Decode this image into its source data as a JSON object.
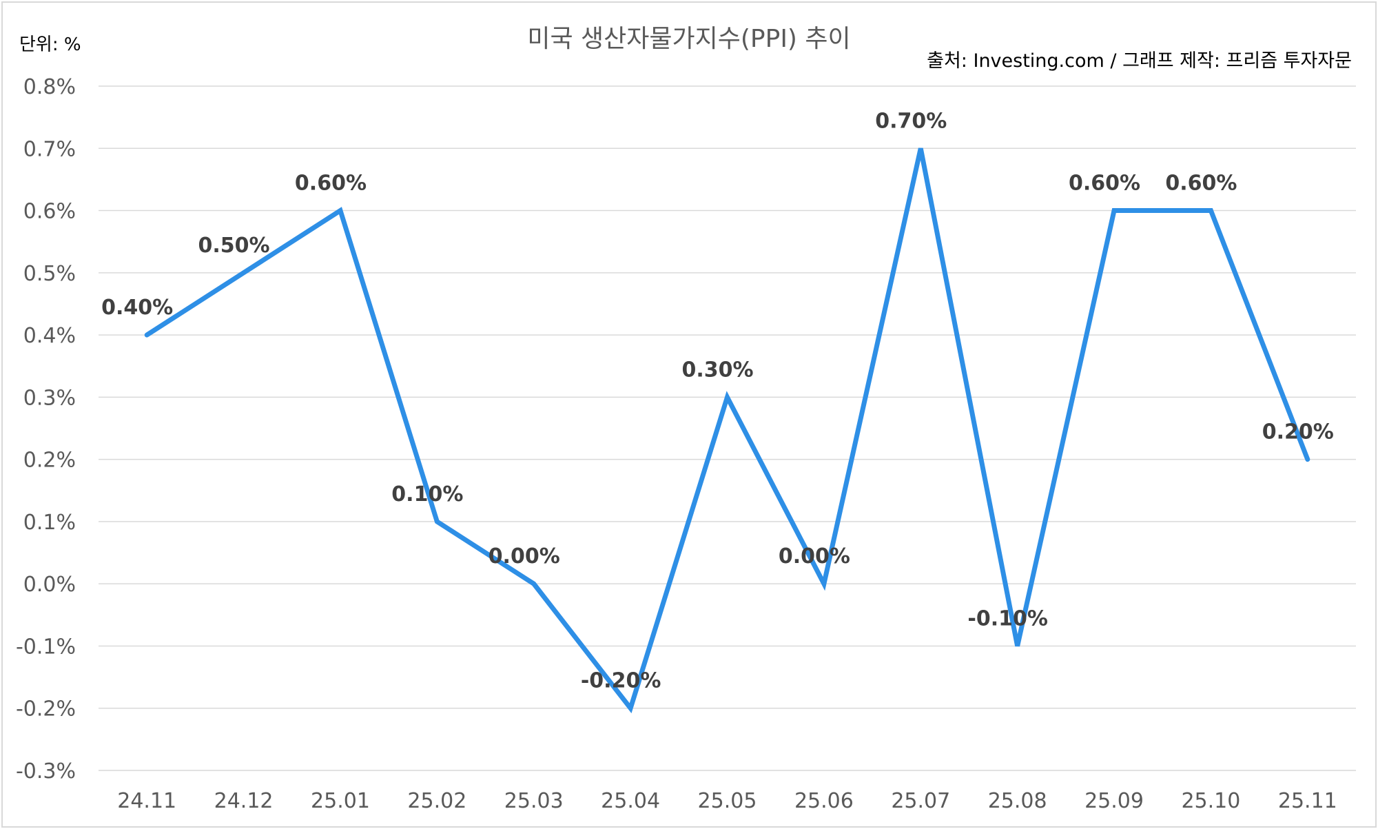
{
  "chart_data": {
    "type": "line",
    "title": "미국 생산자물가지수(PPI) 추이",
    "unit_label": "단위: %",
    "source": "출처: Investing.com / 그래프 제작: 프리즘 투자자문",
    "categories": [
      "24.11",
      "24.12",
      "25.01",
      "25.02",
      "25.03",
      "25.04",
      "25.05",
      "25.06",
      "25.07",
      "25.08",
      "25.09",
      "25.10",
      "25.11"
    ],
    "series": [
      {
        "values": [
          0.4,
          0.5,
          0.6,
          0.1,
          0.0,
          -0.2,
          0.3,
          0.0,
          0.7,
          -0.1,
          0.6,
          0.6,
          0.2
        ],
        "color": "#2E8FE6"
      }
    ],
    "data_labels": [
      "0.40%",
      "0.50%",
      "0.60%",
      "0.10%",
      "0.00%",
      "-0.20%",
      "0.30%",
      "0.00%",
      "0.70%",
      "-0.10%",
      "0.60%",
      "0.60%",
      "0.20%"
    ],
    "y_ticks": [
      {
        "value": 0.8,
        "label": "0.8%"
      },
      {
        "value": 0.7,
        "label": "0.7%"
      },
      {
        "value": 0.6,
        "label": "0.6%"
      },
      {
        "value": 0.5,
        "label": "0.5%"
      },
      {
        "value": 0.4,
        "label": "0.4%"
      },
      {
        "value": 0.3,
        "label": "0.3%"
      },
      {
        "value": 0.2,
        "label": "0.2%"
      },
      {
        "value": 0.1,
        "label": "0.1%"
      },
      {
        "value": 0.0,
        "label": "0.0%"
      },
      {
        "value": -0.1,
        "label": "-0.1%"
      },
      {
        "value": -0.2,
        "label": "-0.2%"
      },
      {
        "value": -0.3,
        "label": "-0.3%"
      }
    ],
    "ylim": [
      -0.3,
      0.8
    ],
    "grid": true,
    "legend": "none"
  }
}
